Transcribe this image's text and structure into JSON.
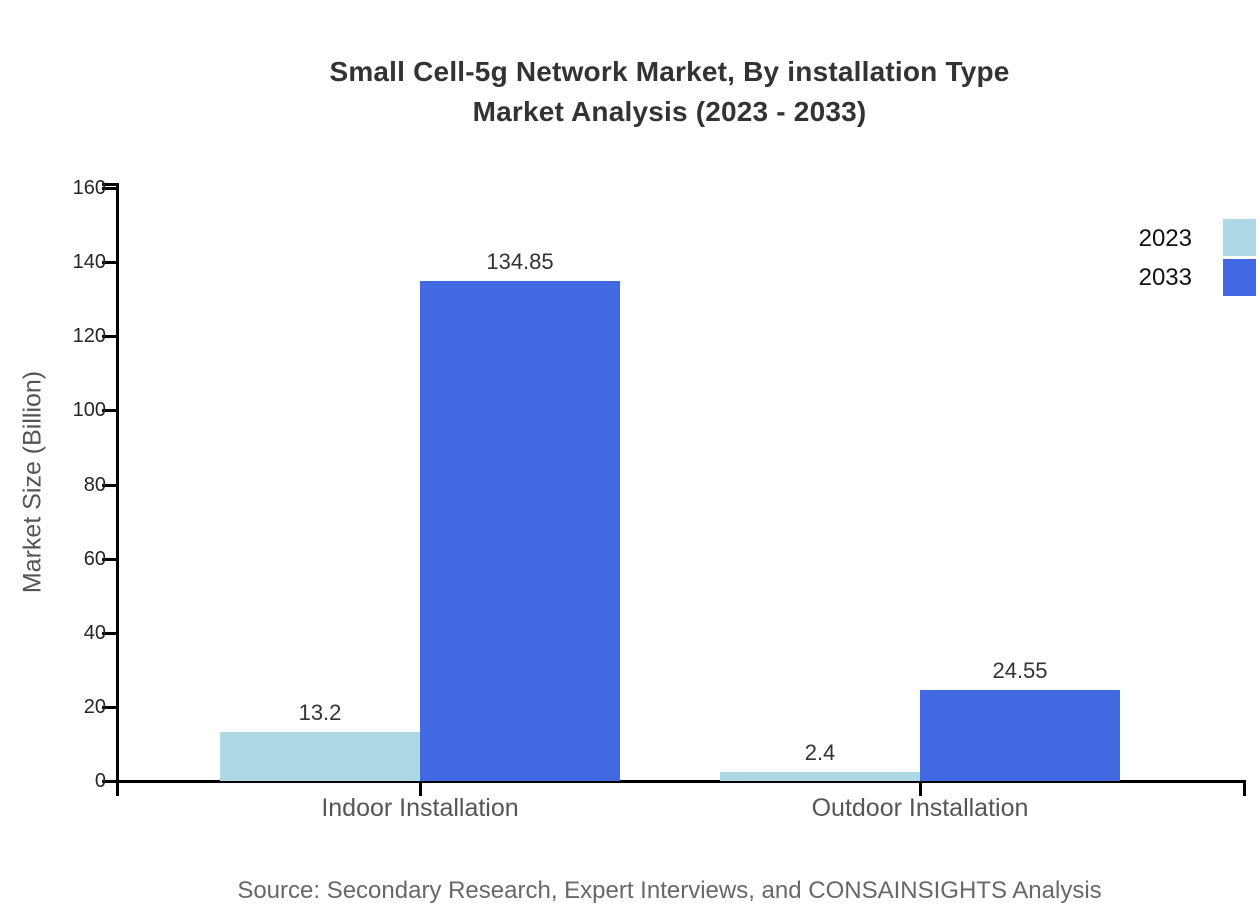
{
  "title": {
    "line1": "Small Cell-5g Network Market, By installation Type",
    "line2": "Market Analysis (2023 - 2033)"
  },
  "source": "Source: Secondary Research, Expert Interviews, and CONSAINSIGHTS Analysis",
  "chart_data": {
    "type": "bar",
    "title": "Small Cell-5g Network Market, By installation Type Market Analysis (2023 - 2033)",
    "categories": [
      "Indoor Installation",
      "Outdoor Installation"
    ],
    "series": [
      {
        "name": "2023",
        "color": "#ADD8E6",
        "values": [
          13.2,
          2.4
        ]
      },
      {
        "name": "2033",
        "color": "#4169E1",
        "values": [
          134.85,
          24.55
        ]
      }
    ],
    "value_labels": [
      "13.2",
      "134.85",
      "2.4",
      "24.55"
    ],
    "xlabel": "",
    "ylabel": "Market Size (Billion)",
    "ylim": [
      0,
      160
    ],
    "yticks": [
      0,
      20,
      40,
      60,
      80,
      100,
      120,
      140,
      160
    ],
    "grid": false,
    "legend_position": "top-right",
    "axis_color": "#000000"
  }
}
